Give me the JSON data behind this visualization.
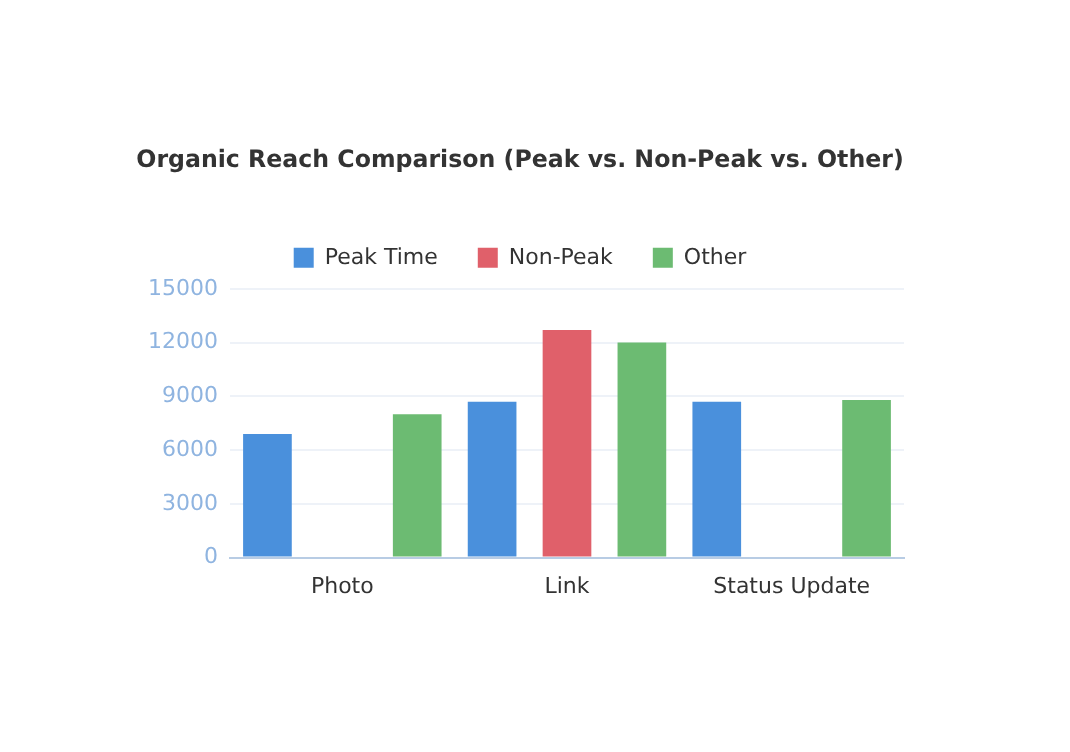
{
  "chart_data": {
    "type": "bar",
    "title": "Organic Reach Comparison (Peak vs. Non-Peak vs. Other)",
    "categories": [
      "Photo",
      "Link",
      "Status Update"
    ],
    "series": [
      {
        "name": "Peak Time",
        "color": "#4a90dc",
        "values": [
          6900,
          8700,
          8700
        ]
      },
      {
        "name": "Non-Peak",
        "color": "#e0606a",
        "values": [
          null,
          12700,
          null
        ]
      },
      {
        "name": "Other",
        "color": "#6cbb72",
        "values": [
          8000,
          12000,
          8800
        ]
      }
    ],
    "ylim": [
      0,
      15000
    ],
    "yticks": [
      0,
      3000,
      6000,
      9000,
      12000,
      15000
    ],
    "grid": "y",
    "legend": "top"
  }
}
